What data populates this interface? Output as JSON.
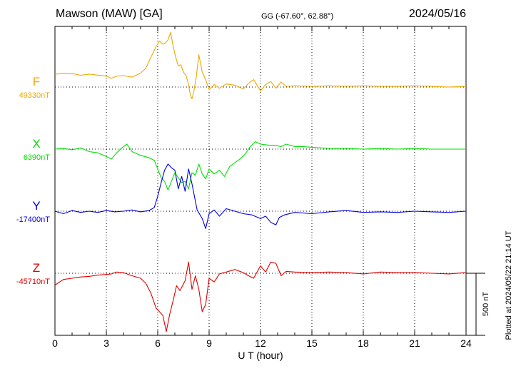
{
  "header": {
    "station": "Mawson (MAW)  [GA]",
    "coords": "GG (-67.60°,  62.88°)",
    "date": "2024/05/16"
  },
  "plotted_note": "Plotted at 2024/05/22 21:14 UT",
  "scale_bar_label": "500 nT",
  "chart_data": {
    "type": "line",
    "xlabel": "U T (hour)",
    "xlim": [
      0,
      24
    ],
    "xticks": [
      0,
      3,
      6,
      9,
      12,
      15,
      18,
      21,
      24
    ],
    "grid": true,
    "scale_bar_nT": 500,
    "series": [
      {
        "name": "F",
        "baseline_label": "49330nT",
        "color": "#f0a800",
        "x": [
          0,
          0.5,
          1,
          1.5,
          2,
          2.5,
          3,
          3.3,
          3.6,
          4,
          4.5,
          5,
          5.3,
          5.6,
          5.9,
          6.1,
          6.3,
          6.45,
          6.6,
          6.75,
          6.9,
          7.05,
          7.2,
          7.35,
          7.5,
          7.65,
          7.8,
          7.9,
          8.0,
          8.1,
          8.25,
          8.4,
          8.6,
          8.8,
          9.0,
          9.3,
          9.6,
          10,
          10.5,
          11,
          11.3,
          11.6,
          12,
          12.3,
          12.6,
          12.9,
          13.2,
          13.5,
          14,
          15,
          16,
          17,
          18,
          19,
          20,
          21,
          22,
          23,
          24
        ],
        "y": [
          104,
          110,
          108,
          95,
          104,
          96,
          88,
          70,
          88,
          92,
          80,
          112,
          150,
          240,
          325,
          370,
          345,
          355,
          380,
          440,
          330,
          240,
          170,
          180,
          120,
          95,
          20,
          -60,
          -95,
          -40,
          80,
          260,
          120,
          60,
          -20,
          20,
          -10,
          25,
          15,
          -15,
          30,
          60,
          -30,
          20,
          45,
          -10,
          40,
          5,
          10,
          5,
          10,
          5,
          10,
          5,
          5,
          10,
          5,
          0,
          5
        ]
      },
      {
        "name": "X",
        "baseline_label": "6390nT",
        "color": "#00e000",
        "x": [
          0,
          0.5,
          1,
          1.5,
          2,
          2.5,
          3,
          3.3,
          3.6,
          3.9,
          4.2,
          4.5,
          5,
          5.5,
          5.8,
          6.0,
          6.2,
          6.4,
          6.6,
          6.8,
          7.0,
          7.2,
          7.4,
          7.6,
          7.8,
          8.0,
          8.2,
          8.4,
          8.6,
          8.8,
          9.0,
          9.3,
          9.6,
          9.9,
          10.2,
          10.5,
          10.8,
          11.1,
          11.4,
          11.7,
          12,
          12.3,
          12.6,
          12.9,
          13.2,
          13.5,
          14,
          14.5,
          15,
          16,
          17,
          18,
          19,
          20,
          21,
          22,
          23,
          24
        ],
        "y": [
          0,
          5,
          -5,
          10,
          -20,
          -30,
          -60,
          -80,
          -30,
          10,
          40,
          -20,
          -50,
          -70,
          -90,
          -160,
          -230,
          -260,
          -330,
          -260,
          -190,
          -230,
          -270,
          -260,
          -320,
          -190,
          -210,
          -120,
          -200,
          -240,
          -160,
          -200,
          -170,
          -220,
          -140,
          -110,
          -80,
          -40,
          20,
          60,
          40,
          35,
          30,
          30,
          20,
          40,
          20,
          20,
          15,
          5,
          5,
          0,
          5,
          0,
          5,
          0,
          0,
          0
        ]
      },
      {
        "name": "Y",
        "baseline_label": "-17400nT",
        "color": "#0000e0",
        "x": [
          0,
          0.5,
          1,
          1.5,
          2,
          2.5,
          3,
          3.5,
          4,
          4.5,
          5,
          5.5,
          5.8,
          6.0,
          6.2,
          6.4,
          6.6,
          6.8,
          7.0,
          7.2,
          7.4,
          7.6,
          7.8,
          8.0,
          8.3,
          8.6,
          8.8,
          9.0,
          9.3,
          9.6,
          10,
          10.5,
          11,
          11.5,
          12,
          12.3,
          12.6,
          12.9,
          13.1,
          13.4,
          14,
          15,
          16,
          17,
          18,
          19,
          20,
          21,
          22,
          23,
          24
        ],
        "y": [
          0,
          -20,
          5,
          -10,
          0,
          -10,
          5,
          -5,
          0,
          10,
          -5,
          5,
          30,
          120,
          230,
          330,
          380,
          350,
          330,
          180,
          280,
          160,
          340,
          220,
          10,
          -60,
          -140,
          -20,
          10,
          -40,
          20,
          0,
          -20,
          -30,
          -60,
          -40,
          -90,
          -110,
          -50,
          -30,
          -10,
          -20,
          -5,
          5,
          -10,
          -5,
          -10,
          0,
          -5,
          -10,
          0
        ]
      },
      {
        "name": "Z",
        "baseline_label": "-45710nT",
        "color": "#e00000",
        "x": [
          0,
          0.5,
          1,
          1.5,
          2,
          2.5,
          3,
          3.3,
          3.6,
          4,
          4.5,
          5,
          5.3,
          5.6,
          5.9,
          6.1,
          6.3,
          6.5,
          6.7,
          6.9,
          7.1,
          7.3,
          7.6,
          7.8,
          8.0,
          8.2,
          8.4,
          8.6,
          8.8,
          9.0,
          9.3,
          9.6,
          10,
          10.5,
          11,
          11.3,
          11.6,
          12,
          12.3,
          12.6,
          12.9,
          13.2,
          13.5,
          14,
          15,
          16,
          17,
          18,
          19,
          20,
          21,
          22,
          23,
          24
        ],
        "y": [
          -95,
          -50,
          -40,
          -30,
          -25,
          -15,
          -10,
          -5,
          10,
          5,
          -20,
          -40,
          -80,
          -160,
          -280,
          -310,
          -340,
          -470,
          -330,
          -220,
          -100,
          -140,
          -60,
          90,
          -130,
          -20,
          -130,
          -310,
          -250,
          -40,
          -70,
          -5,
          10,
          30,
          5,
          -20,
          -40,
          60,
          10,
          90,
          80,
          -20,
          15,
          10,
          5,
          10,
          5,
          -5,
          10,
          5,
          5,
          0,
          -5,
          5
        ]
      }
    ]
  }
}
